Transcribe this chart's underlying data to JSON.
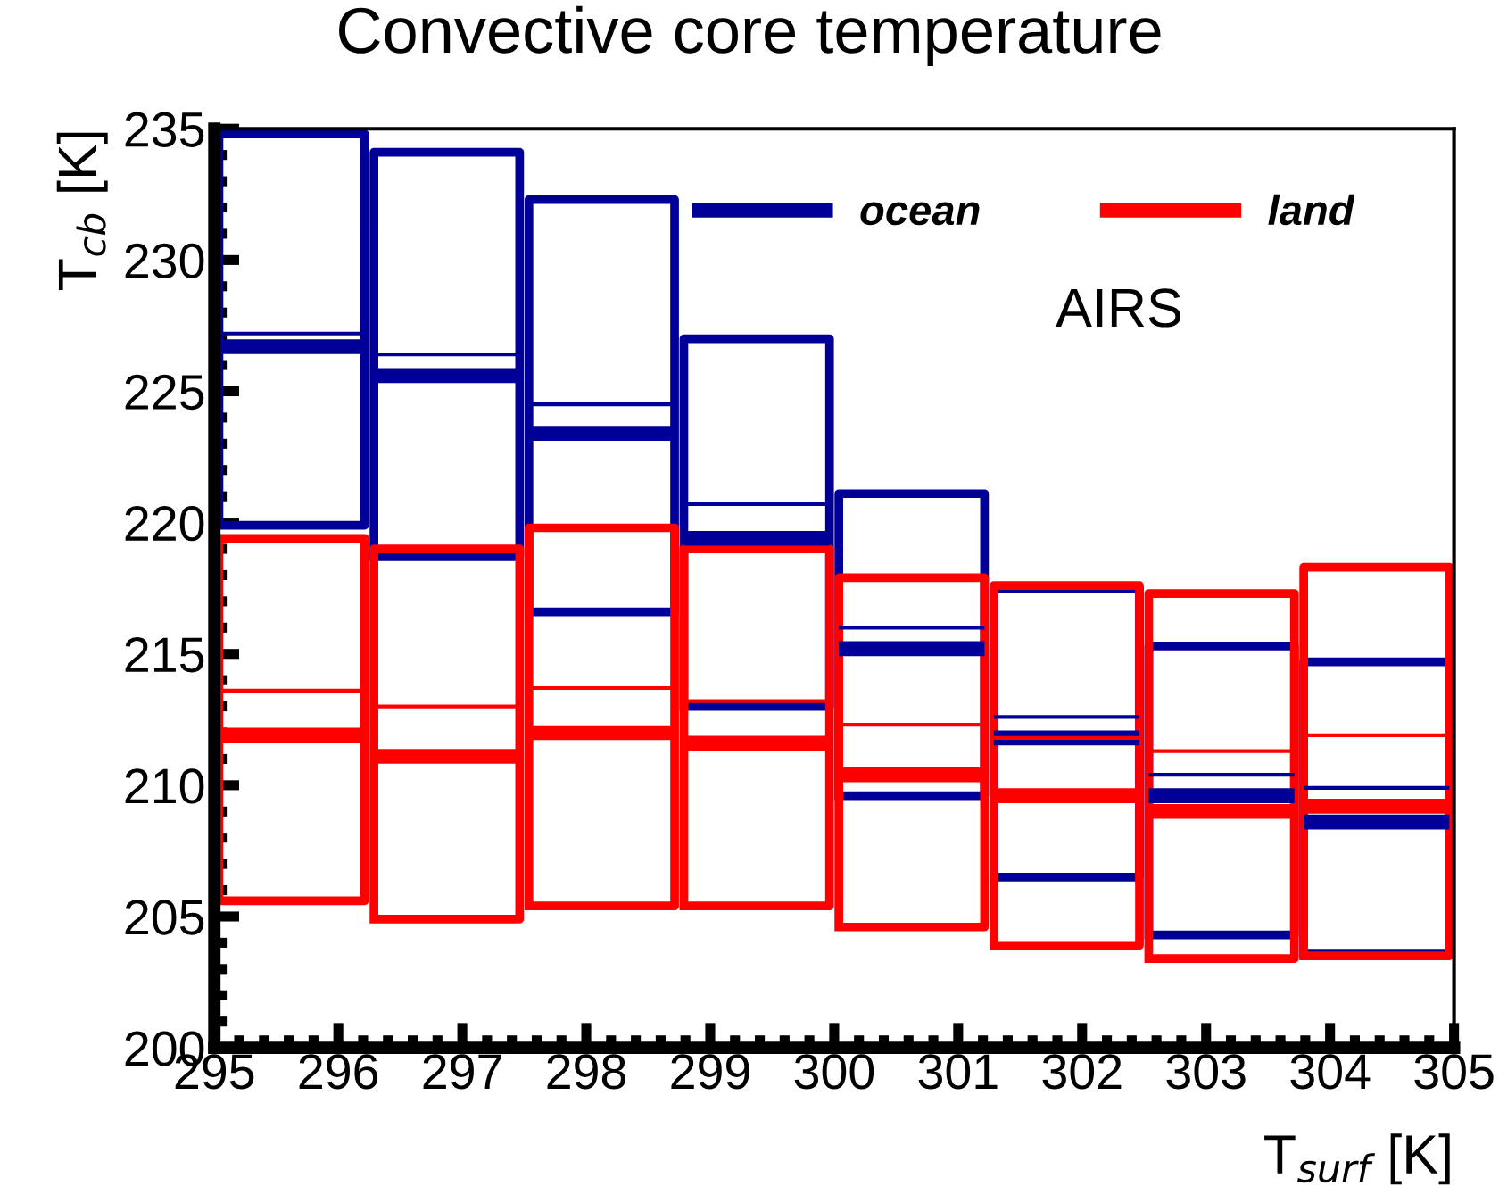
{
  "chart_data": {
    "type": "box",
    "title": "Convective core temperature",
    "xlabel": "T$_{surf}$ [K]",
    "ylabel": "T$_{cb}$ [K]",
    "x": [
      295.625,
      296.875,
      298.125,
      299.375,
      300.625,
      301.875,
      303.125,
      304.375
    ],
    "xlim": [
      295,
      305
    ],
    "xticks": [
      295,
      296,
      297,
      298,
      299,
      300,
      301,
      302,
      303,
      304,
      305
    ],
    "ylim": [
      200,
      235
    ],
    "yticks": [
      200,
      205,
      210,
      215,
      220,
      225,
      230,
      235
    ],
    "legend": "top right",
    "grid": false,
    "annotations": [
      "AIRS"
    ],
    "series": [
      {
        "name": "ocean",
        "color": "#000099",
        "boxes": [
          {
            "low": 219.9,
            "q1": 219.9,
            "median": 226.7,
            "q3": 234.8,
            "high": 234.8,
            "mean": 227.2
          },
          {
            "low": 218.7,
            "q1": 218.7,
            "median": 225.6,
            "q3": 234.1,
            "high": 234.1,
            "mean": 226.4
          },
          {
            "low": 216.6,
            "q1": 216.6,
            "median": 223.4,
            "q3": 232.3,
            "high": 232.3,
            "mean": 224.5
          },
          {
            "low": 213.0,
            "q1": 213.0,
            "median": 219.4,
            "q3": 227.0,
            "high": 227.0,
            "mean": 220.7
          },
          {
            "low": 209.6,
            "q1": 209.6,
            "median": 215.2,
            "q3": 221.1,
            "high": 221.1,
            "mean": 216.0
          },
          {
            "low": 206.5,
            "q1": 206.5,
            "median": 211.8,
            "q3": 217.5,
            "high": 217.5,
            "mean": 212.6
          },
          {
            "low": 204.3,
            "q1": 204.3,
            "median": 209.6,
            "q3": 215.3,
            "high": 215.3,
            "mean": 210.4
          },
          {
            "low": 203.6,
            "q1": 203.6,
            "median": 208.6,
            "q3": 214.7,
            "high": 214.7,
            "mean": 209.9
          }
        ]
      },
      {
        "name": "land",
        "color": "#ff0000",
        "boxes": [
          {
            "low": 205.6,
            "q1": 205.6,
            "median": 211.9,
            "q3": 219.4,
            "high": 219.4,
            "mean": 213.6
          },
          {
            "low": 204.9,
            "q1": 204.9,
            "median": 211.1,
            "q3": 219.0,
            "high": 219.0,
            "mean": 213.0
          },
          {
            "low": 205.4,
            "q1": 205.4,
            "median": 212.0,
            "q3": 219.8,
            "high": 219.8,
            "mean": 213.7
          },
          {
            "low": 205.4,
            "q1": 205.4,
            "median": 211.6,
            "q3": 219.0,
            "high": 219.0,
            "mean": 213.2
          },
          {
            "low": 204.6,
            "q1": 204.6,
            "median": 210.4,
            "q3": 217.9,
            "high": 217.9,
            "mean": 212.3
          },
          {
            "low": 203.9,
            "q1": 203.9,
            "median": 209.6,
            "q3": 217.6,
            "high": 217.6,
            "mean": 211.8
          },
          {
            "low": 203.4,
            "q1": 203.4,
            "median": 209.0,
            "q3": 217.3,
            "high": 217.3,
            "mean": 211.3
          },
          {
            "low": 203.5,
            "q1": 203.5,
            "median": 209.2,
            "q3": 218.3,
            "high": 218.3,
            "mean": 211.9
          }
        ]
      }
    ]
  }
}
